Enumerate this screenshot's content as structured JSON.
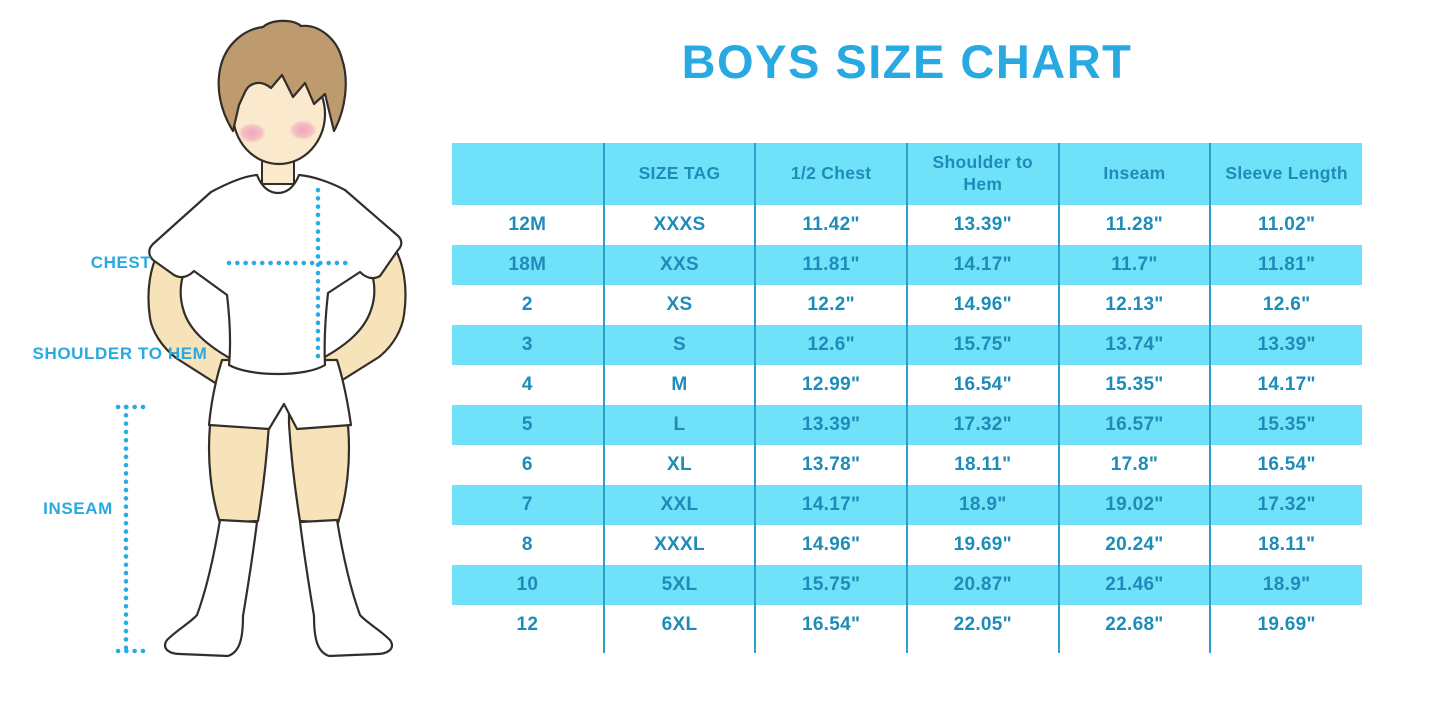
{
  "title": "BOYS SIZE CHART",
  "figure": {
    "chest_label": "CHEST",
    "shoulder_label": "SHOULDER TO HEM",
    "inseam_label": "INSEAM"
  },
  "colors": {
    "accent_blue": "#29A9E1",
    "band_cyan": "#6FE1F9",
    "divider_teal": "#2AA0CB",
    "table_text_blue": "#1E8CB8",
    "dotted_line_cyan": "#29ABE2"
  },
  "chart_data": {
    "type": "table",
    "title": "BOYS SIZE CHART",
    "columns": [
      "",
      "SIZE TAG",
      "1/2 Chest",
      "Shoulder to Hem",
      "Inseam",
      "Sleeve Length"
    ],
    "rows": [
      [
        "12M",
        "XXXS",
        "11.42\"",
        "13.39\"",
        "11.28\"",
        "11.02\""
      ],
      [
        "18M",
        "XXS",
        "11.81\"",
        "14.17\"",
        "11.7\"",
        "11.81\""
      ],
      [
        "2",
        "XS",
        "12.2\"",
        "14.96\"",
        "12.13\"",
        "12.6\""
      ],
      [
        "3",
        "S",
        "12.6\"",
        "15.75\"",
        "13.74\"",
        "13.39\""
      ],
      [
        "4",
        "M",
        "12.99\"",
        "16.54\"",
        "15.35\"",
        "14.17\""
      ],
      [
        "5",
        "L",
        "13.39\"",
        "17.32\"",
        "16.57\"",
        "15.35\""
      ],
      [
        "6",
        "XL",
        "13.78\"",
        "18.11\"",
        "17.8\"",
        "16.54\""
      ],
      [
        "7",
        "XXL",
        "14.17\"",
        "18.9\"",
        "19.02\"",
        "17.32\""
      ],
      [
        "8",
        "XXXL",
        "14.96\"",
        "19.69\"",
        "20.24\"",
        "18.11\""
      ],
      [
        "10",
        "5XL",
        "15.75\"",
        "20.87\"",
        "21.46\"",
        "18.9\""
      ],
      [
        "12",
        "6XL",
        "16.54\"",
        "22.05\"",
        "22.68\"",
        "19.69\""
      ]
    ],
    "banding": "header and alternating rows filled light cyan, others white",
    "grid": "vertical teal dividers between columns only, no horizontal lines"
  }
}
